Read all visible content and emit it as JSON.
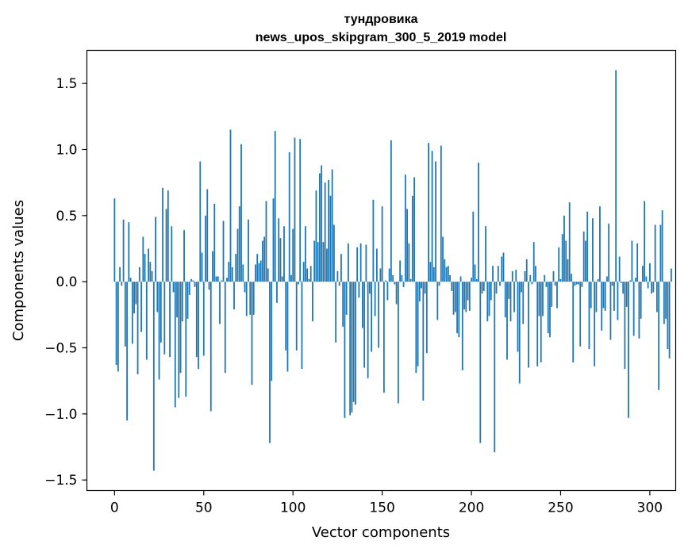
{
  "chart_data": {
    "type": "bar",
    "title_line1": "тундровика",
    "title_line2": "news_upos_skipgram_300_5_2019 model",
    "xlabel": "Vector components",
    "ylabel": "Components values",
    "xlim": [
      -15.5,
      314.5
    ],
    "ylim": [
      -1.58,
      1.75
    ],
    "xticks": [
      0,
      50,
      100,
      150,
      200,
      250,
      300
    ],
    "xtick_labels": [
      "0",
      "50",
      "100",
      "150",
      "200",
      "250",
      "300"
    ],
    "yticks": [
      -1.5,
      -1.0,
      -0.5,
      0.0,
      0.5,
      1.0,
      1.5
    ],
    "ytick_labels": [
      "−1.5",
      "−1.0",
      "−0.5",
      "0.0",
      "0.5",
      "1.0",
      "1.5"
    ],
    "bar_color": "#1f77b4",
    "grid": false,
    "values": [
      0.63,
      -0.63,
      -0.68,
      0.11,
      -0.03,
      0.47,
      -0.49,
      -1.05,
      0.45,
      0.03,
      -0.47,
      -0.24,
      -0.17,
      -0.7,
      0.11,
      -0.38,
      0.34,
      0.21,
      -0.59,
      0.25,
      0.15,
      0.08,
      -1.43,
      0.49,
      -0.23,
      -0.74,
      -0.46,
      0.71,
      -0.55,
      0.55,
      0.69,
      -0.57,
      0.42,
      -0.08,
      -0.95,
      -0.27,
      -0.88,
      -0.69,
      -0.3,
      0.39,
      -0.87,
      -0.28,
      -0.1,
      0.02,
      0.01,
      -0.04,
      -0.57,
      -0.66,
      0.91,
      0.22,
      -0.56,
      0.5,
      0.7,
      -0.06,
      -0.98,
      0.23,
      0.59,
      0.04,
      0.04,
      -0.32,
      0.01,
      0.46,
      -0.69,
      0.03,
      0.15,
      1.15,
      0.11,
      -0.21,
      0.21,
      0.4,
      0.57,
      1.04,
      0.13,
      -0.08,
      -0.26,
      0.47,
      -0.25,
      -0.78,
      -0.25,
      0.13,
      0.21,
      0.14,
      0.16,
      0.31,
      0.34,
      0.61,
      0.1,
      -1.22,
      -0.75,
      0.63,
      1.14,
      -0.16,
      0.48,
      0.33,
      0.04,
      0.42,
      -0.52,
      -0.68,
      0.98,
      0.05,
      0.4,
      1.09,
      -0.52,
      -0.02,
      1.08,
      -0.66,
      0.15,
      0.42,
      0.1,
      0.02,
      0.12,
      -0.3,
      0.31,
      0.69,
      0.3,
      0.82,
      0.88,
      0.3,
      0.75,
      0.25,
      0.77,
      0.65,
      0.85,
      0.43,
      -0.46,
      0.08,
      -0.03,
      0.21,
      -0.34,
      -1.03,
      -0.25,
      0.29,
      -1.01,
      -0.99,
      -0.91,
      -0.93,
      0.26,
      -0.12,
      0.29,
      -0.35,
      -0.65,
      0.28,
      -0.73,
      -0.09,
      -0.53,
      0.62,
      -0.26,
      0.25,
      -0.5,
      0.1,
      0.57,
      -0.84,
      0.01,
      -0.14,
      0.1,
      1.07,
      0.05,
      -0.02,
      -0.17,
      -0.92,
      0.16,
      0.05,
      -0.04,
      0.81,
      0.55,
      0.29,
      0.02,
      0.65,
      0.79,
      -0.69,
      -0.64,
      -0.15,
      -0.05,
      -0.9,
      -0.09,
      -0.54,
      1.05,
      0.15,
      0.99,
      0.11,
      0.91,
      -0.29,
      -0.03,
      1.03,
      0.34,
      0.17,
      0.11,
      0.12,
      0.05,
      -0.07,
      -0.25,
      -0.23,
      -0.39,
      -0.42,
      0.04,
      -0.67,
      -0.21,
      -0.23,
      -0.14,
      -0.22,
      0.03,
      0.53,
      0.13,
      0.02,
      0.9,
      -1.22,
      -0.09,
      -0.07,
      0.42,
      -0.3,
      -0.26,
      -0.14,
      0.12,
      -1.29,
      -0.09,
      0.12,
      -0.03,
      0.19,
      0.22,
      -0.27,
      -0.59,
      -0.13,
      -0.3,
      0.08,
      -0.23,
      0.09,
      -0.53,
      -0.77,
      -0.08,
      -0.32,
      0.08,
      0.17,
      -0.65,
      0.05,
      -0.02,
      0.3,
      0.12,
      -0.64,
      -0.26,
      -0.61,
      -0.26,
      0.05,
      -0.04,
      -0.39,
      -0.42,
      -0.19,
      0.08,
      -0.03,
      -0.2,
      0.26,
      0.02,
      0.36,
      0.5,
      0.31,
      0.17,
      0.6,
      0.06,
      -0.61,
      -0.03,
      -0.02,
      -0.02,
      -0.49,
      -0.04,
      0.38,
      0.31,
      0.53,
      -0.51,
      -0.2,
      0.48,
      -0.64,
      -0.23,
      0.02,
      0.57,
      -0.37,
      -0.2,
      -0.22,
      0.04,
      0.44,
      -0.44,
      -0.03,
      -0.22,
      1.6,
      -0.29,
      0.19,
      -0.01,
      -0.09,
      -0.66,
      -0.19,
      -1.03,
      0.01,
      0.31,
      -0.41,
      0.03,
      0.29,
      -0.43,
      -0.28,
      0.12,
      0.61,
      0.04,
      -0.05,
      0.14,
      -0.09,
      -0.08,
      0.43,
      -0.23,
      -0.82,
      0.43,
      0.54,
      -0.32,
      -0.28,
      -0.51,
      -0.58,
      0.1
    ]
  }
}
